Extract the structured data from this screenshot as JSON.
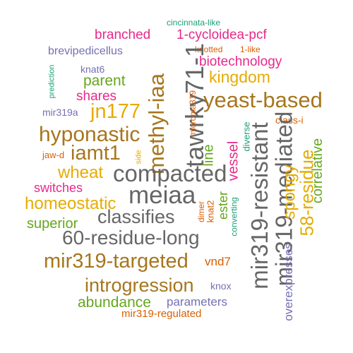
{
  "palette": {
    "green": "#1b9e77",
    "orange": "#d95f02",
    "purple": "#7570b3",
    "pink": "#e7298a",
    "lime": "#66a61e",
    "yellow": "#e6ab02",
    "brown": "#a6761d",
    "gray": "#666666"
  },
  "words": {
    "cincinnata_like": "cincinnata-like",
    "branched": "branched",
    "one_cycloidea_pcf": "1-cycloidea-pcf",
    "brevipedicellus": "brevipedicellus",
    "knotted": "knotted",
    "one_like": "1-like",
    "prediction": "prediction",
    "biotechnology": "biotechnology",
    "knat6": "knat6",
    "parent": "parent",
    "kingdom": "kingdom",
    "tawrky71_1": "tawrky71-1",
    "methyl_iaa": "methyl-iaa",
    "shares": "shares",
    "microma319": "microma319",
    "yeast_based": "yeast-based",
    "mir319a": "mir319a",
    "jn177": "jn177",
    "class_i": "class-i",
    "hyponastic": "hyponastic",
    "mir319_mediated": "mir319-mediated",
    "mir319_resistant": "mir319-resistant",
    "diverse": "diverse",
    "correlative": "correlative",
    "jaw_d": "jaw-d",
    "side": "side",
    "iamt1": "iamt1",
    "vessel": "vessel",
    "line": "line",
    "fifty_eight_residue": "58-residue",
    "wheat": "wheat",
    "compacted": "compacted",
    "spongy": "spongy",
    "switches": "switches",
    "meiaa": "meiaa",
    "homeostatic": "homeostatic",
    "dimer": "dimer",
    "knat2": "knat2",
    "ester": "ester",
    "converting": "converting",
    "classifies": "classifies",
    "superior": "superior",
    "sixty_residue_long": "60-residue-long",
    "mir319_targeted": "mir319-targeted",
    "vnd7": "vnd7",
    "overexpresses": "overexpresses",
    "introgression": "introgression",
    "knox": "knox",
    "abundance": "abundance",
    "parameters": "parameters",
    "mir319_regulated": "mir319-regulated"
  }
}
